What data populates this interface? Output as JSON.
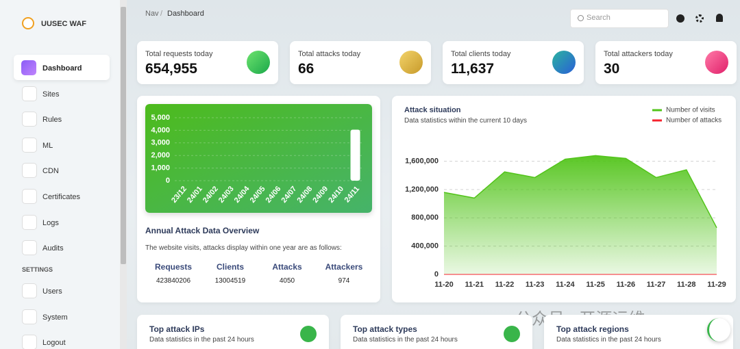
{
  "brand": "UUSEC WAF",
  "menu": [
    "Dashboard",
    "Sites",
    "Rules",
    "ML",
    "CDN",
    "Certificates",
    "Logs",
    "Audits"
  ],
  "settings_heading": "SETTINGS",
  "settings_menu": [
    "Users",
    "System",
    "Logout"
  ],
  "breadcrumb": {
    "parent": "Nav",
    "separator": "/",
    "current": "Dashboard"
  },
  "search_placeholder": "Search",
  "stats": [
    {
      "label": "Total requests today",
      "value": "654,955"
    },
    {
      "label": "Total attacks today",
      "value": "66"
    },
    {
      "label": "Total clients today",
      "value": "11,637"
    },
    {
      "label": "Total attackers today",
      "value": "30"
    }
  ],
  "annual": {
    "title": "Annual Attack Data Overview",
    "description": "The website visits, attacks display within one year are as follows:",
    "table": {
      "headers": [
        "Requests",
        "Clients",
        "Attacks",
        "Attackers"
      ],
      "values": [
        "423840206",
        "13004519",
        "4050",
        "974"
      ]
    },
    "chart": {
      "type": "bar",
      "categories": [
        "23/12",
        "24/01",
        "24/02",
        "24/03",
        "24/04",
        "24/05",
        "24/06",
        "24/07",
        "24/08",
        "24/09",
        "24/10",
        "24/11"
      ],
      "values": [
        0,
        0,
        0,
        0,
        0,
        0,
        0,
        0,
        0,
        0,
        0,
        4050
      ],
      "color": "#ffffff",
      "ylim": [
        0,
        5000
      ],
      "yticks": [
        0,
        {
          "value": 1000,
          "label": "1,000"
        },
        {
          "value": 2000,
          "label": "2,000"
        },
        {
          "value": 3000,
          "label": "3,000"
        },
        {
          "value": 4000,
          "label": "4,000"
        },
        {
          "value": 5000,
          "label": "5,000"
        }
      ],
      "grid": true
    }
  },
  "attack_situation": {
    "title": "Attack situation",
    "subtitle": "Data statistics within the current 10 days",
    "chart": {
      "type": "area",
      "categories": [
        "11-20",
        "11-21",
        "11-22",
        "11-23",
        "11-24",
        "11-25",
        "11-26",
        "11-27",
        "11-28",
        "11-29"
      ],
      "series": [
        {
          "name": "Number of visits",
          "color": "#52c41a",
          "values": [
            1160000,
            1080000,
            1450000,
            1370000,
            1630000,
            1680000,
            1640000,
            1370000,
            1480000,
            660000
          ]
        },
        {
          "name": "Number of attacks",
          "color": "#f5222d",
          "values": [
            0,
            0,
            0,
            0,
            0,
            0,
            0,
            0,
            0,
            0
          ]
        }
      ],
      "ylim": [
        0,
        1800000
      ],
      "yticks": [
        0,
        {
          "value": 400000,
          "label": "400,000"
        },
        {
          "value": 800000,
          "label": "800,000"
        },
        {
          "value": 1200000,
          "label": "1,200,000"
        },
        {
          "value": 1600000,
          "label": "1,600,000"
        }
      ],
      "grid": true,
      "legend": "top-right"
    }
  },
  "bottom_cards": [
    {
      "title": "Top attack IPs",
      "subtitle": "Data statistics in the past 24 hours"
    },
    {
      "title": "Top attack types",
      "subtitle": "Data statistics in the past 24 hours"
    },
    {
      "title": "Top attack regions",
      "subtitle": "Data statistics in the past 24 hours"
    }
  ],
  "watermark": "公众号 · 开源运维"
}
